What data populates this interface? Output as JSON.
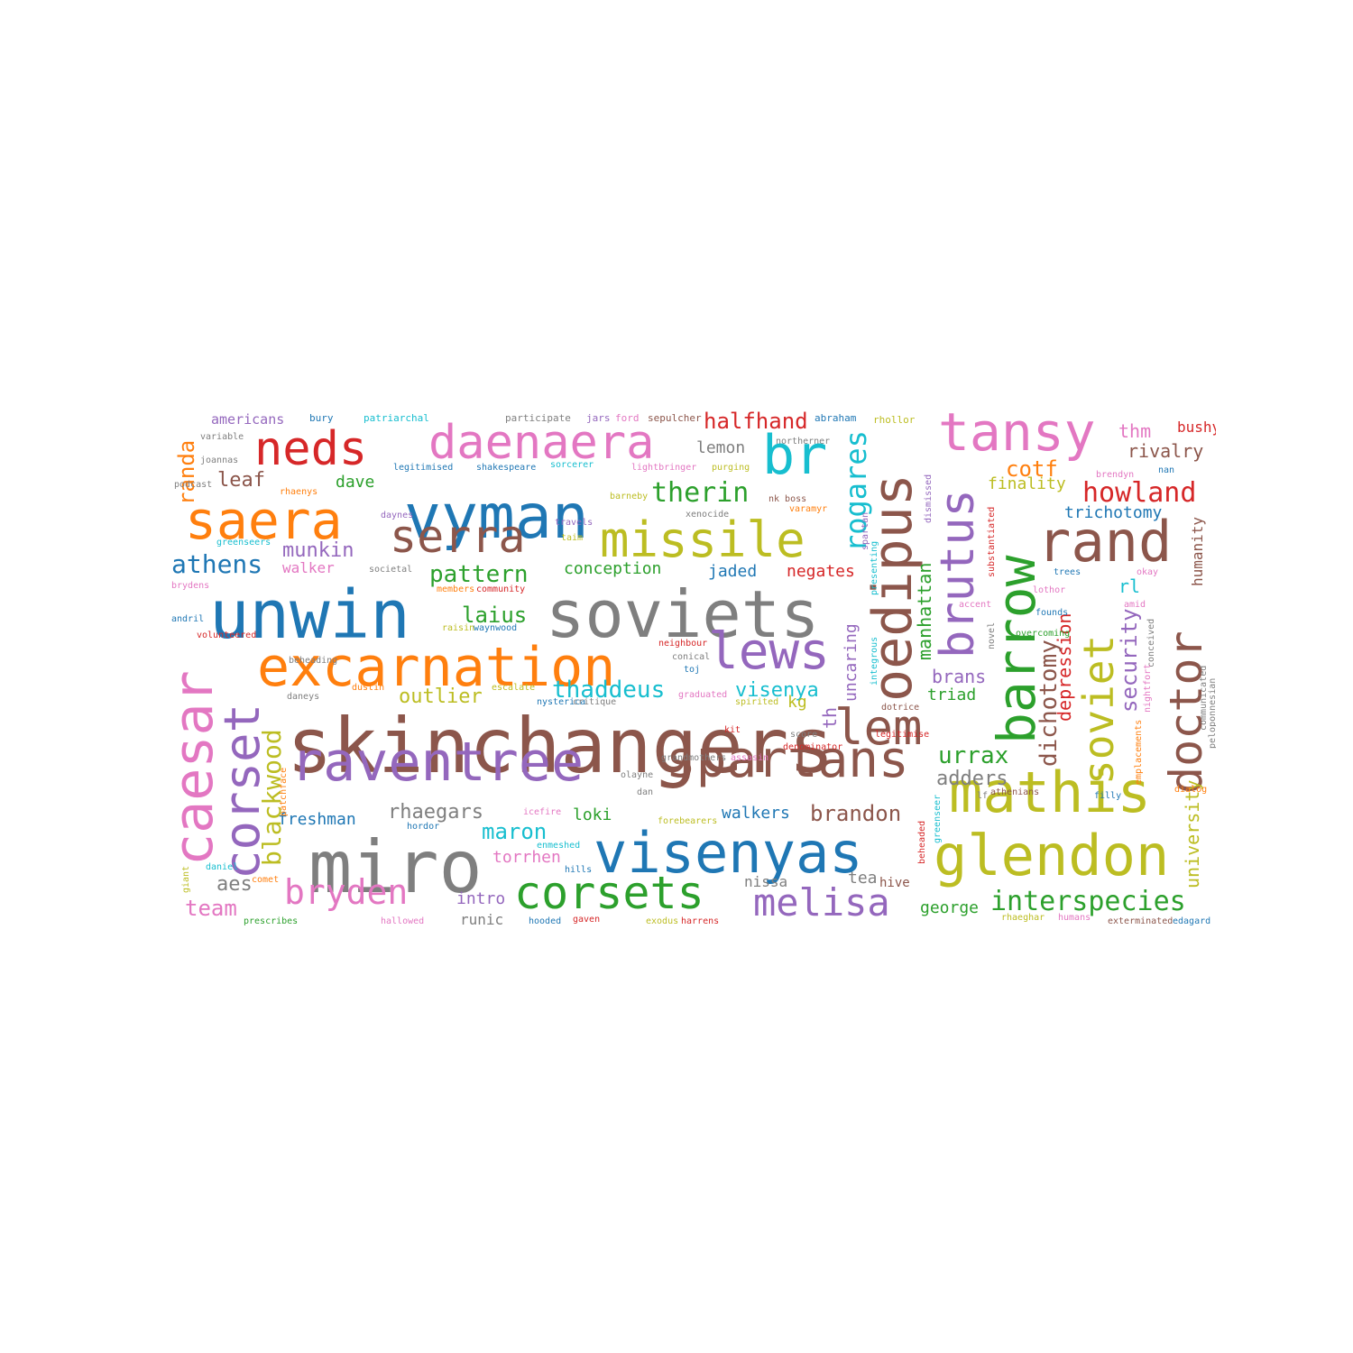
{
  "palette": {
    "blue": "#1f77b4",
    "orange": "#ff7f0e",
    "green": "#2ca02c",
    "red": "#d62728",
    "purple": "#9467bd",
    "brown": "#8c564b",
    "pink": "#e377c2",
    "gray": "#7f7f7f",
    "olive": "#bcbd22",
    "cyan": "#17becf"
  },
  "words": [
    {
      "text": "skinchangers",
      "color": "brown"
    },
    {
      "text": "soviets",
      "color": "gray"
    },
    {
      "text": "unwin",
      "color": "blue"
    },
    {
      "text": "excarnation",
      "color": "orange"
    },
    {
      "text": "miro",
      "color": "gray"
    },
    {
      "text": "visenyas",
      "color": "blue"
    },
    {
      "text": "raventree",
      "color": "purple"
    },
    {
      "text": "vyman",
      "color": "blue"
    },
    {
      "text": "daenaera",
      "color": "pink"
    },
    {
      "text": "neds",
      "color": "red"
    },
    {
      "text": "saera",
      "color": "orange"
    },
    {
      "text": "missile",
      "color": "olive"
    },
    {
      "text": "serra",
      "color": "brown"
    },
    {
      "text": "lews",
      "color": "purple"
    },
    {
      "text": "spartans",
      "color": "brown"
    },
    {
      "text": "corsets",
      "color": "green"
    },
    {
      "text": "lem",
      "color": "brown"
    },
    {
      "text": "mathis",
      "color": "olive"
    },
    {
      "text": "glendon",
      "color": "olive"
    },
    {
      "text": "tansy",
      "color": "pink"
    },
    {
      "text": "rand",
      "color": "brown"
    },
    {
      "text": "br",
      "color": "cyan"
    },
    {
      "text": "bryden",
      "color": "pink"
    },
    {
      "text": "melisa",
      "color": "purple"
    },
    {
      "text": "oedipus",
      "color": "brown"
    },
    {
      "text": "barrow",
      "color": "green"
    },
    {
      "text": "brutus",
      "color": "purple"
    },
    {
      "text": "caesar",
      "color": "pink"
    },
    {
      "text": "corset",
      "color": "purple"
    },
    {
      "text": "soviet",
      "color": "olive"
    },
    {
      "text": "doctor",
      "color": "brown"
    },
    {
      "text": "interspecies",
      "color": "green"
    },
    {
      "text": "howland",
      "color": "red"
    },
    {
      "text": "therin",
      "color": "green"
    },
    {
      "text": "athens",
      "color": "blue"
    },
    {
      "text": "halfhand",
      "color": "red"
    },
    {
      "text": "thaddeus",
      "color": "cyan"
    },
    {
      "text": "pattern",
      "color": "green"
    },
    {
      "text": "rhaegars",
      "color": "gray"
    },
    {
      "text": "brandon",
      "color": "brown"
    },
    {
      "text": "adders",
      "color": "gray"
    },
    {
      "text": "urrax",
      "color": "green"
    },
    {
      "text": "maron",
      "color": "cyan"
    },
    {
      "text": "outlier",
      "color": "olive"
    },
    {
      "text": "visenya",
      "color": "cyan"
    },
    {
      "text": "cotf",
      "color": "orange"
    },
    {
      "text": "laius",
      "color": "green"
    },
    {
      "text": "munkin",
      "color": "purple"
    },
    {
      "text": "leaf",
      "color": "brown"
    },
    {
      "text": "rivalry",
      "color": "brown"
    },
    {
      "text": "trichotomy",
      "color": "blue"
    },
    {
      "text": "finality",
      "color": "olive"
    },
    {
      "text": "freshman",
      "color": "blue"
    },
    {
      "text": "loki",
      "color": "green"
    },
    {
      "text": "walkers",
      "color": "blue"
    },
    {
      "text": "torrhen",
      "color": "pink"
    },
    {
      "text": "team",
      "color": "pink"
    },
    {
      "text": "aes",
      "color": "gray"
    },
    {
      "text": "intro",
      "color": "purple"
    },
    {
      "text": "george",
      "color": "green"
    },
    {
      "text": "jaded",
      "color": "blue"
    },
    {
      "text": "negates",
      "color": "red"
    },
    {
      "text": "conception",
      "color": "green"
    },
    {
      "text": "brans",
      "color": "purple"
    },
    {
      "text": "triad",
      "color": "green"
    },
    {
      "text": "kg",
      "color": "olive"
    },
    {
      "text": "dave",
      "color": "green"
    },
    {
      "text": "lemon",
      "color": "gray"
    },
    {
      "text": "rl",
      "color": "cyan"
    },
    {
      "text": "thm",
      "color": "pink"
    },
    {
      "text": "bushy",
      "color": "red"
    },
    {
      "text": "americans",
      "color": "purple"
    },
    {
      "text": "walker",
      "color": "pink"
    },
    {
      "text": "tea",
      "color": "gray"
    },
    {
      "text": "hive",
      "color": "brown"
    },
    {
      "text": "nissa",
      "color": "gray"
    },
    {
      "text": "runic",
      "color": "gray"
    },
    {
      "text": "rogares",
      "color": "cyan"
    },
    {
      "text": "blackwood",
      "color": "olive"
    },
    {
      "text": "randa",
      "color": "orange"
    },
    {
      "text": "dichotomy",
      "color": "brown"
    },
    {
      "text": "security",
      "color": "purple"
    },
    {
      "text": "depression",
      "color": "red"
    },
    {
      "text": "manhattan",
      "color": "green"
    },
    {
      "text": "uncaring",
      "color": "purple"
    },
    {
      "text": "th",
      "color": "purple"
    },
    {
      "text": "university",
      "color": "olive"
    },
    {
      "text": "humanity",
      "color": "brown"
    },
    {
      "text": "bury",
      "color": "blue"
    },
    {
      "text": "patriarchal",
      "color": "cyan"
    },
    {
      "text": "participate",
      "color": "gray"
    },
    {
      "text": "jars",
      "color": "purple"
    },
    {
      "text": "ford",
      "color": "pink"
    },
    {
      "text": "sepulcher",
      "color": "brown"
    },
    {
      "text": "abraham",
      "color": "blue"
    },
    {
      "text": "rhollor",
      "color": "olive"
    },
    {
      "text": "variable",
      "color": "gray"
    },
    {
      "text": "joannas",
      "color": "gray"
    },
    {
      "text": "podcast",
      "color": "gray"
    },
    {
      "text": "rhaenys",
      "color": "orange"
    },
    {
      "text": "legitimised",
      "color": "blue"
    },
    {
      "text": "shakespeare",
      "color": "blue"
    },
    {
      "text": "sorcerer",
      "color": "cyan"
    },
    {
      "text": "lightbringer",
      "color": "pink"
    },
    {
      "text": "purging",
      "color": "olive"
    },
    {
      "text": "northerner",
      "color": "gray"
    },
    {
      "text": "brendyn",
      "color": "pink"
    },
    {
      "text": "nan",
      "color": "blue"
    },
    {
      "text": "barneby",
      "color": "olive"
    },
    {
      "text": "nk boss",
      "color": "brown"
    },
    {
      "text": "xenocide",
      "color": "gray"
    },
    {
      "text": "varamyr",
      "color": "orange"
    },
    {
      "text": "daynes",
      "color": "purple"
    },
    {
      "text": "travels",
      "color": "purple"
    },
    {
      "text": "taim",
      "color": "olive"
    },
    {
      "text": "greenseers",
      "color": "cyan"
    },
    {
      "text": "societal",
      "color": "gray"
    },
    {
      "text": "members",
      "color": "orange"
    },
    {
      "text": "community",
      "color": "red"
    },
    {
      "text": "brydens",
      "color": "pink"
    },
    {
      "text": "andril",
      "color": "blue"
    },
    {
      "text": "volunteered",
      "color": "red"
    },
    {
      "text": "raisin",
      "color": "olive"
    },
    {
      "text": "waynwood",
      "color": "blue"
    },
    {
      "text": "neighbour",
      "color": "red"
    },
    {
      "text": "conical",
      "color": "gray"
    },
    {
      "text": "toj",
      "color": "blue"
    },
    {
      "text": "beheading",
      "color": "gray"
    },
    {
      "text": "dustin",
      "color": "orange"
    },
    {
      "text": "escalate",
      "color": "olive"
    },
    {
      "text": "nysterica",
      "color": "blue"
    },
    {
      "text": "critique",
      "color": "gray"
    },
    {
      "text": "graduated",
      "color": "pink"
    },
    {
      "text": "spirited",
      "color": "olive"
    },
    {
      "text": "daneys",
      "color": "gray"
    },
    {
      "text": "dotrice",
      "color": "brown"
    },
    {
      "text": "kit",
      "color": "red"
    },
    {
      "text": "score",
      "color": "gray"
    },
    {
      "text": "denominator",
      "color": "red"
    },
    {
      "text": "legitimise",
      "color": "red"
    },
    {
      "text": "grandmothers",
      "color": "gray"
    },
    {
      "text": "assasin",
      "color": "pink"
    },
    {
      "text": "olayne",
      "color": "gray"
    },
    {
      "text": "dan",
      "color": "gray"
    },
    {
      "text": "patchface",
      "color": "orange"
    },
    {
      "text": "lf",
      "color": "gray"
    },
    {
      "text": "athenians",
      "color": "brown"
    },
    {
      "text": "filly",
      "color": "blue"
    },
    {
      "text": "dialog",
      "color": "orange"
    },
    {
      "text": "hordor",
      "color": "blue"
    },
    {
      "text": "icefire",
      "color": "pink"
    },
    {
      "text": "forebearers",
      "color": "olive"
    },
    {
      "text": "enmeshed",
      "color": "cyan"
    },
    {
      "text": "hills",
      "color": "blue"
    },
    {
      "text": "daniel",
      "color": "cyan"
    },
    {
      "text": "giant",
      "color": "olive"
    },
    {
      "text": "comet",
      "color": "orange"
    },
    {
      "text": "prescribes",
      "color": "green"
    },
    {
      "text": "hallowed",
      "color": "pink"
    },
    {
      "text": "hooded",
      "color": "blue"
    },
    {
      "text": "gaven",
      "color": "red"
    },
    {
      "text": "exodus",
      "color": "olive"
    },
    {
      "text": "harrens",
      "color": "red"
    },
    {
      "text": "rhaeghar",
      "color": "olive"
    },
    {
      "text": "humans",
      "color": "pink"
    },
    {
      "text": "exterminated",
      "color": "brown"
    },
    {
      "text": "edagard",
      "color": "blue"
    },
    {
      "text": "trees",
      "color": "blue"
    },
    {
      "text": "okay",
      "color": "pink"
    },
    {
      "text": "accent",
      "color": "pink"
    },
    {
      "text": "lothor",
      "color": "pink"
    },
    {
      "text": "amid",
      "color": "pink"
    },
    {
      "text": "founds",
      "color": "blue"
    },
    {
      "text": "overcoming",
      "color": "green"
    },
    {
      "text": "spartan",
      "color": "purple"
    },
    {
      "text": "presenting",
      "color": "cyan"
    },
    {
      "text": "dismissed",
      "color": "purple"
    },
    {
      "text": "integrous",
      "color": "cyan"
    },
    {
      "text": "novel",
      "color": "gray"
    },
    {
      "text": "substantiated",
      "color": "red"
    },
    {
      "text": "conceived",
      "color": "gray"
    },
    {
      "text": "communicated",
      "color": "gray"
    },
    {
      "text": "peloponnesian",
      "color": "gray"
    },
    {
      "text": "nightfort",
      "color": "pink"
    },
    {
      "text": "emplacements",
      "color": "orange"
    },
    {
      "text": "greenseer",
      "color": "cyan"
    },
    {
      "text": "beheaded",
      "color": "red"
    }
  ]
}
